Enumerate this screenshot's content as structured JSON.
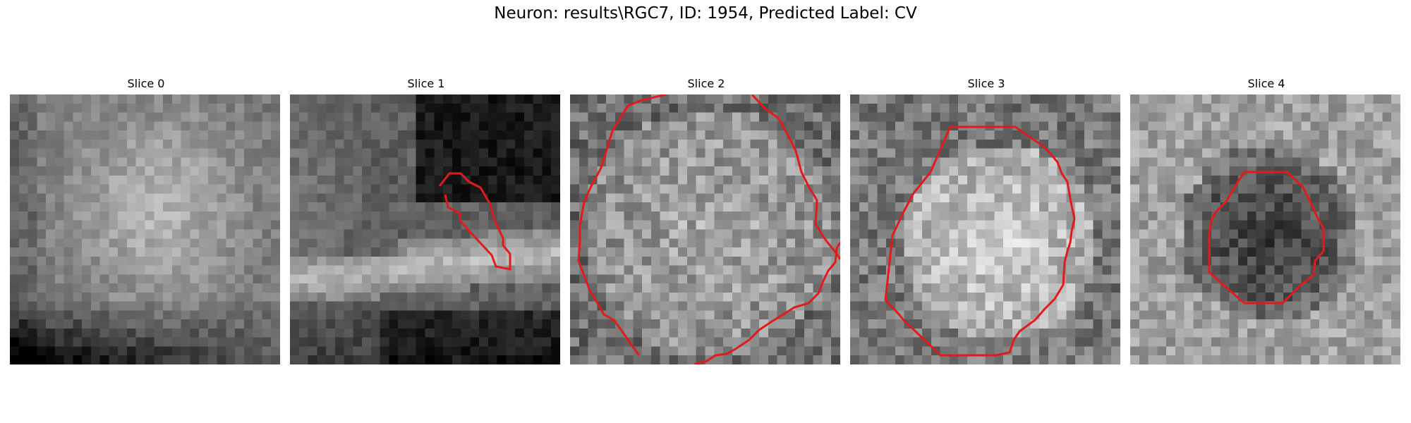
{
  "figure": {
    "title": "Neuron: results\\RGC7, ID: 1954, Predicted Label: CV"
  },
  "panels": [
    {
      "label": "Slice 0",
      "has_contour": false
    },
    {
      "label": "Slice 1",
      "has_contour": true
    },
    {
      "label": "Slice 2",
      "has_contour": true
    },
    {
      "label": "Slice 3",
      "has_contour": true
    },
    {
      "label": "Slice 4",
      "has_contour": true
    }
  ],
  "colors": {
    "contour": "#e31a1c",
    "background": "#ffffff",
    "colormap": "gray"
  }
}
